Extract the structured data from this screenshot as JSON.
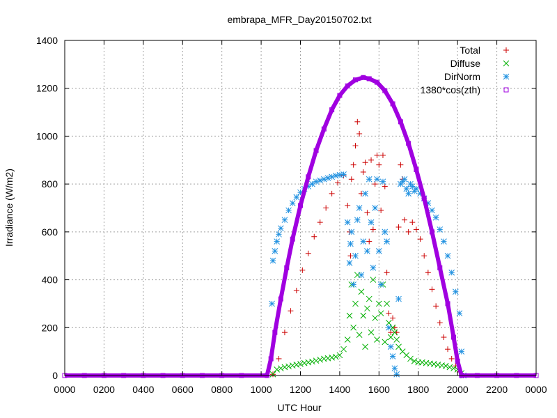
{
  "chart_data": {
    "type": "scatter",
    "title": "embrapa_MFR_Day20150702.txt",
    "xlabel": "UTC Hour",
    "ylabel": "Irradiance (W/m2)",
    "xlim": [
      0,
      24
    ],
    "ylim": [
      0,
      1400
    ],
    "x_ticks": [
      0,
      2,
      4,
      6,
      8,
      10,
      12,
      14,
      16,
      18,
      20,
      22,
      24
    ],
    "x_tick_labels": [
      "0000",
      "0200",
      "0400",
      "0600",
      "0800",
      "1000",
      "1200",
      "1400",
      "1600",
      "1800",
      "2000",
      "2200",
      "0000"
    ],
    "y_ticks": [
      0,
      200,
      400,
      600,
      800,
      1000,
      1200,
      1400
    ],
    "y_tick_labels": [
      "0",
      "200",
      "400",
      "600",
      "800",
      "1000",
      "1200",
      "1400"
    ],
    "grid": true,
    "legend_position": "top-right",
    "series": [
      {
        "name": "Total",
        "color": "#cc0000",
        "marker": "plus",
        "points": [
          [
            10.6,
            5
          ],
          [
            10.9,
            70
          ],
          [
            11.2,
            180
          ],
          [
            11.5,
            270
          ],
          [
            11.8,
            355
          ],
          [
            12.1,
            440
          ],
          [
            12.4,
            510
          ],
          [
            12.7,
            580
          ],
          [
            13.0,
            640
          ],
          [
            13.3,
            700
          ],
          [
            13.6,
            760
          ],
          [
            13.9,
            805
          ],
          [
            14.2,
            835
          ],
          [
            14.4,
            710
          ],
          [
            14.5,
            600
          ],
          [
            14.55,
            500
          ],
          [
            14.6,
            820
          ],
          [
            14.7,
            880
          ],
          [
            14.8,
            960
          ],
          [
            14.9,
            1060
          ],
          [
            15.0,
            1010
          ],
          [
            15.1,
            760
          ],
          [
            15.2,
            850
          ],
          [
            15.3,
            890
          ],
          [
            15.4,
            680
          ],
          [
            15.5,
            560
          ],
          [
            15.6,
            900
          ],
          [
            15.7,
            610
          ],
          [
            15.8,
            800
          ],
          [
            15.9,
            920
          ],
          [
            16.0,
            880
          ],
          [
            16.1,
            690
          ],
          [
            16.2,
            920
          ],
          [
            16.3,
            790
          ],
          [
            16.4,
            430
          ],
          [
            16.5,
            260
          ],
          [
            16.6,
            180
          ],
          [
            16.7,
            240
          ],
          [
            16.8,
            200
          ],
          [
            16.9,
            180
          ],
          [
            17.0,
            620
          ],
          [
            17.1,
            880
          ],
          [
            17.2,
            820
          ],
          [
            17.3,
            650
          ],
          [
            17.5,
            600
          ],
          [
            17.7,
            640
          ],
          [
            17.9,
            610
          ],
          [
            18.1,
            570
          ],
          [
            18.3,
            500
          ],
          [
            18.5,
            430
          ],
          [
            18.7,
            360
          ],
          [
            18.9,
            290
          ],
          [
            19.1,
            220
          ],
          [
            19.3,
            160
          ],
          [
            19.5,
            110
          ],
          [
            19.7,
            70
          ],
          [
            19.9,
            40
          ],
          [
            20.1,
            15
          ],
          [
            20.3,
            0
          ]
        ]
      },
      {
        "name": "Diffuse",
        "color": "#00b000",
        "marker": "x",
        "points": [
          [
            10.6,
            5
          ],
          [
            10.8,
            25
          ],
          [
            11.0,
            30
          ],
          [
            11.2,
            35
          ],
          [
            11.4,
            38
          ],
          [
            11.6,
            42
          ],
          [
            11.8,
            45
          ],
          [
            12.0,
            48
          ],
          [
            12.2,
            52
          ],
          [
            12.4,
            55
          ],
          [
            12.6,
            58
          ],
          [
            12.8,
            62
          ],
          [
            13.0,
            66
          ],
          [
            13.2,
            70
          ],
          [
            13.4,
            72
          ],
          [
            13.6,
            75
          ],
          [
            13.8,
            78
          ],
          [
            14.0,
            85
          ],
          [
            14.2,
            110
          ],
          [
            14.4,
            150
          ],
          [
            14.5,
            250
          ],
          [
            14.6,
            380
          ],
          [
            14.7,
            200
          ],
          [
            14.8,
            300
          ],
          [
            14.9,
            420
          ],
          [
            15.0,
            170
          ],
          [
            15.1,
            350
          ],
          [
            15.2,
            250
          ],
          [
            15.3,
            120
          ],
          [
            15.4,
            280
          ],
          [
            15.5,
            320
          ],
          [
            15.6,
            180
          ],
          [
            15.7,
            400
          ],
          [
            15.8,
            240
          ],
          [
            15.9,
            150
          ],
          [
            16.0,
            300
          ],
          [
            16.1,
            260
          ],
          [
            16.2,
            380
          ],
          [
            16.3,
            140
          ],
          [
            16.4,
            300
          ],
          [
            16.5,
            220
          ],
          [
            16.6,
            160
          ],
          [
            16.7,
            200
          ],
          [
            16.8,
            180
          ],
          [
            16.9,
            150
          ],
          [
            17.0,
            120
          ],
          [
            17.2,
            100
          ],
          [
            17.4,
            85
          ],
          [
            17.6,
            70
          ],
          [
            17.8,
            60
          ],
          [
            18.0,
            55
          ],
          [
            18.2,
            55
          ],
          [
            18.4,
            52
          ],
          [
            18.6,
            50
          ],
          [
            18.8,
            48
          ],
          [
            19.0,
            45
          ],
          [
            19.2,
            42
          ],
          [
            19.4,
            40
          ],
          [
            19.6,
            35
          ],
          [
            19.8,
            30
          ],
          [
            20.0,
            25
          ],
          [
            20.2,
            10
          ]
        ]
      },
      {
        "name": "DirNorm",
        "color": "#1e90e0",
        "marker": "star",
        "points": [
          [
            10.55,
            300
          ],
          [
            10.6,
            480
          ],
          [
            10.7,
            520
          ],
          [
            10.8,
            560
          ],
          [
            10.9,
            590
          ],
          [
            11.0,
            615
          ],
          [
            11.2,
            650
          ],
          [
            11.4,
            690
          ],
          [
            11.6,
            720
          ],
          [
            11.8,
            745
          ],
          [
            12.0,
            765
          ],
          [
            12.2,
            780
          ],
          [
            12.4,
            790
          ],
          [
            12.6,
            800
          ],
          [
            12.8,
            810
          ],
          [
            13.0,
            815
          ],
          [
            13.2,
            820
          ],
          [
            13.4,
            825
          ],
          [
            13.6,
            830
          ],
          [
            13.8,
            835
          ],
          [
            14.0,
            838
          ],
          [
            14.2,
            840
          ],
          [
            14.4,
            640
          ],
          [
            14.5,
            470
          ],
          [
            14.55,
            550
          ],
          [
            14.6,
            600
          ],
          [
            14.7,
            380
          ],
          [
            14.8,
            500
          ],
          [
            14.9,
            650
          ],
          [
            15.0,
            700
          ],
          [
            15.1,
            420
          ],
          [
            15.2,
            560
          ],
          [
            15.3,
            760
          ],
          [
            15.4,
            520
          ],
          [
            15.5,
            820
          ],
          [
            15.6,
            640
          ],
          [
            15.7,
            450
          ],
          [
            15.8,
            700
          ],
          [
            15.9,
            820
          ],
          [
            16.0,
            520
          ],
          [
            16.1,
            380
          ],
          [
            16.2,
            810
          ],
          [
            16.3,
            600
          ],
          [
            16.4,
            560
          ],
          [
            16.5,
            200
          ],
          [
            16.6,
            120
          ],
          [
            16.7,
            80
          ],
          [
            16.8,
            30
          ],
          [
            16.9,
            5
          ],
          [
            17.0,
            320
          ],
          [
            17.1,
            800
          ],
          [
            17.2,
            810
          ],
          [
            17.3,
            820
          ],
          [
            17.4,
            780
          ],
          [
            17.5,
            760
          ],
          [
            17.6,
            800
          ],
          [
            17.7,
            790
          ],
          [
            17.8,
            770
          ],
          [
            17.9,
            780
          ],
          [
            18.1,
            760
          ],
          [
            18.3,
            740
          ],
          [
            18.5,
            720
          ],
          [
            18.7,
            690
          ],
          [
            18.9,
            660
          ],
          [
            19.1,
            610
          ],
          [
            19.3,
            560
          ],
          [
            19.5,
            500
          ],
          [
            19.7,
            430
          ],
          [
            19.9,
            350
          ],
          [
            20.1,
            260
          ],
          [
            20.2,
            100
          ],
          [
            20.3,
            0
          ]
        ]
      },
      {
        "name": "1380*cos(zth)",
        "color": "#a000e0",
        "marker": "square",
        "points": [
          [
            0,
            0
          ],
          [
            1,
            0
          ],
          [
            2,
            0
          ],
          [
            3,
            0
          ],
          [
            4,
            0
          ],
          [
            5,
            0
          ],
          [
            6,
            0
          ],
          [
            7,
            0
          ],
          [
            8,
            0
          ],
          [
            9,
            0
          ],
          [
            10.3,
            0
          ],
          [
            10.5,
            70
          ],
          [
            10.7,
            180
          ],
          [
            11.0,
            320
          ],
          [
            11.3,
            450
          ],
          [
            11.6,
            570
          ],
          [
            12.0,
            710
          ],
          [
            12.4,
            830
          ],
          [
            12.8,
            940
          ],
          [
            13.2,
            1030
          ],
          [
            13.6,
            1110
          ],
          [
            14.0,
            1170
          ],
          [
            14.4,
            1210
          ],
          [
            14.8,
            1235
          ],
          [
            15.2,
            1245
          ],
          [
            15.5,
            1240
          ],
          [
            15.9,
            1225
          ],
          [
            16.3,
            1190
          ],
          [
            16.7,
            1135
          ],
          [
            17.1,
            1060
          ],
          [
            17.5,
            970
          ],
          [
            17.9,
            860
          ],
          [
            18.3,
            740
          ],
          [
            18.7,
            600
          ],
          [
            19.1,
            450
          ],
          [
            19.5,
            300
          ],
          [
            19.8,
            160
          ],
          [
            20.0,
            60
          ],
          [
            20.2,
            0
          ],
          [
            21,
            0
          ],
          [
            22,
            0
          ],
          [
            23,
            0
          ],
          [
            24,
            0
          ]
        ]
      }
    ]
  }
}
